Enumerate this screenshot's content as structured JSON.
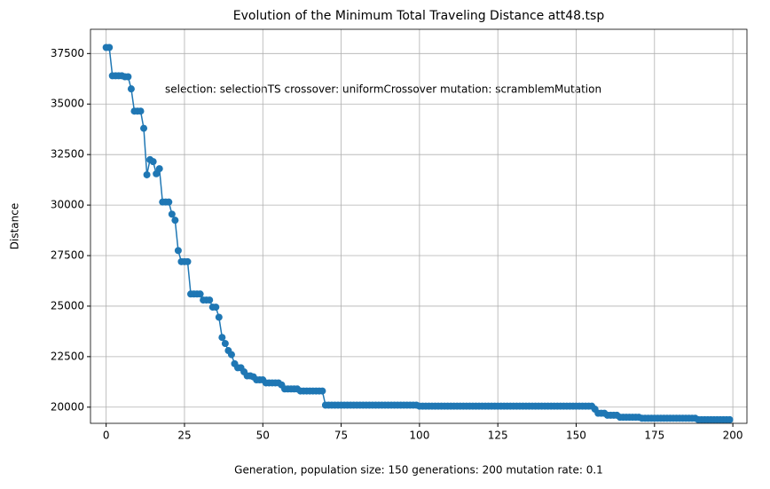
{
  "chart_data": {
    "type": "line",
    "title": "Evolution of the Minimum Total Traveling Distance att48.tsp",
    "annotation": "selection: selectionTS crossover: uniformCrossover mutation: scramblemMutation",
    "xlabel": "Generation,  population size: 150 generations: 200 mutation rate: 0.1",
    "ylabel": "Distance",
    "x": [
      0,
      1,
      2,
      3,
      4,
      5,
      6,
      7,
      8,
      9,
      10,
      11,
      12,
      13,
      14,
      15,
      16,
      17,
      18,
      19,
      20,
      21,
      22,
      23,
      24,
      25,
      26,
      27,
      28,
      29,
      30,
      31,
      32,
      33,
      34,
      35,
      36,
      37,
      38,
      39,
      40,
      41,
      42,
      43,
      44,
      45,
      46,
      47,
      48,
      49,
      50,
      51,
      52,
      53,
      54,
      55,
      56,
      57,
      58,
      59,
      60,
      61,
      62,
      63,
      64,
      65,
      66,
      67,
      68,
      69,
      70,
      71,
      72,
      73,
      74,
      75,
      76,
      77,
      78,
      79,
      80,
      81,
      82,
      83,
      84,
      85,
      86,
      87,
      88,
      89,
      90,
      91,
      92,
      93,
      94,
      95,
      96,
      97,
      98,
      99,
      100,
      101,
      102,
      103,
      104,
      105,
      106,
      107,
      108,
      109,
      110,
      111,
      112,
      113,
      114,
      115,
      116,
      117,
      118,
      119,
      120,
      121,
      122,
      123,
      124,
      125,
      126,
      127,
      128,
      129,
      130,
      131,
      132,
      133,
      134,
      135,
      136,
      137,
      138,
      139,
      140,
      141,
      142,
      143,
      144,
      145,
      146,
      147,
      148,
      149,
      150,
      151,
      152,
      153,
      154,
      155,
      156,
      157,
      158,
      159,
      160,
      161,
      162,
      163,
      164,
      165,
      166,
      167,
      168,
      169,
      170,
      171,
      172,
      173,
      174,
      175,
      176,
      177,
      178,
      179,
      180,
      181,
      182,
      183,
      184,
      185,
      186,
      187,
      188,
      189,
      190,
      191,
      192,
      193,
      194,
      195,
      196,
      197,
      198,
      199
    ],
    "series": [
      {
        "name": "Distance",
        "color": "#1f77b4",
        "marker": true,
        "values": [
          37800,
          37800,
          36400,
          36400,
          36400,
          36400,
          36350,
          36350,
          35750,
          34650,
          34650,
          34650,
          33800,
          31500,
          32250,
          32150,
          31550,
          31800,
          30150,
          30150,
          30150,
          29550,
          29250,
          27750,
          27200,
          27200,
          27200,
          25600,
          25600,
          25600,
          25600,
          25300,
          25300,
          25300,
          24950,
          24950,
          24450,
          23450,
          23150,
          22800,
          22600,
          22150,
          21950,
          21950,
          21750,
          21550,
          21550,
          21500,
          21350,
          21350,
          21350,
          21200,
          21200,
          21200,
          21200,
          21200,
          21100,
          20900,
          20900,
          20900,
          20900,
          20900,
          20800,
          20800,
          20800,
          20800,
          20800,
          20800,
          20800,
          20800,
          20100,
          20100,
          20100,
          20100,
          20100,
          20100,
          20100,
          20100,
          20100,
          20100,
          20100,
          20100,
          20100,
          20100,
          20100,
          20100,
          20100,
          20100,
          20100,
          20100,
          20100,
          20100,
          20100,
          20100,
          20100,
          20100,
          20100,
          20100,
          20100,
          20100,
          20050,
          20050,
          20050,
          20050,
          20050,
          20050,
          20050,
          20050,
          20050,
          20050,
          20050,
          20050,
          20050,
          20050,
          20050,
          20050,
          20050,
          20050,
          20050,
          20050,
          20050,
          20050,
          20050,
          20050,
          20050,
          20050,
          20050,
          20050,
          20050,
          20050,
          20050,
          20050,
          20050,
          20050,
          20050,
          20050,
          20050,
          20050,
          20050,
          20050,
          20050,
          20050,
          20050,
          20050,
          20050,
          20050,
          20050,
          20050,
          20050,
          20050,
          20050,
          20050,
          20050,
          20050,
          20050,
          20050,
          19900,
          19700,
          19700,
          19700,
          19600,
          19600,
          19600,
          19600,
          19500,
          19500,
          19500,
          19500,
          19500,
          19500,
          19500,
          19450,
          19450,
          19450,
          19450,
          19450,
          19450,
          19450,
          19450,
          19450,
          19450,
          19450,
          19450,
          19450,
          19450,
          19450,
          19450,
          19450,
          19450,
          19380,
          19380,
          19380,
          19380,
          19380,
          19380,
          19380,
          19380,
          19380,
          19380,
          19380
        ]
      }
    ],
    "xlim": [
      -5,
      204.5
    ],
    "xticks": [
      0,
      25,
      50,
      75,
      100,
      125,
      150,
      175,
      200
    ],
    "ylim": [
      19200,
      38700
    ],
    "yticks": [
      20000,
      22500,
      25000,
      27500,
      30000,
      32500,
      35000,
      37500
    ],
    "grid": true
  }
}
